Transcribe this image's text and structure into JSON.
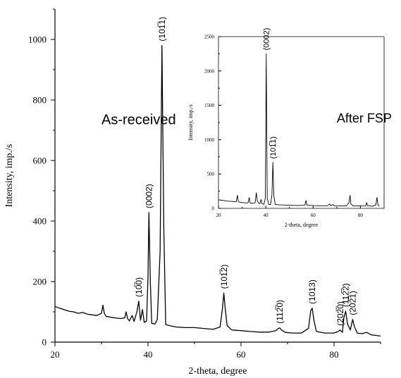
{
  "chart_data": [
    {
      "id": "main",
      "type": "line",
      "title": "",
      "xlabel": "2-theta, degree",
      "ylabel": "Intensity, imp./s",
      "xlim": [
        20,
        90
      ],
      "ylim": [
        0,
        1100
      ],
      "x_ticks": [
        20,
        40,
        60,
        80
      ],
      "y_ticks": [
        0,
        200,
        400,
        600,
        800,
        1000
      ],
      "grid": false,
      "legend": "none",
      "annotations": [
        {
          "text": "As-received",
          "x": 30,
          "y": 720
        }
      ],
      "peaks": [
        {
          "x": 38.0,
          "y": 135,
          "label": "(10̅0)"
        },
        {
          "x": 40.2,
          "y": 428,
          "label": "(0002)"
        },
        {
          "x": 43.0,
          "y": 980,
          "label": "(101̅1)"
        },
        {
          "x": 56.3,
          "y": 162,
          "label": "(101̅2)"
        },
        {
          "x": 68.3,
          "y": 47,
          "label": "(112̅0)"
        },
        {
          "x": 75.3,
          "y": 112,
          "label": "(1013)"
        },
        {
          "x": 81.3,
          "y": 40,
          "label": "(202̅0)"
        },
        {
          "x": 82.5,
          "y": 102,
          "label": "(112̅2)"
        },
        {
          "x": 84.0,
          "y": 75,
          "label": "(202̅1)"
        }
      ],
      "series": [
        {
          "points": [
            [
              20,
              118
            ],
            [
              21,
              112
            ],
            [
              22,
              107
            ],
            [
              23,
              102
            ],
            [
              24,
              100
            ],
            [
              25,
              95
            ],
            [
              26,
              98
            ],
            [
              27,
              92
            ],
            [
              28,
              90
            ],
            [
              29,
              88
            ],
            [
              29.6,
              92
            ],
            [
              30,
              95
            ],
            [
              30.3,
              122
            ],
            [
              30.6,
              95
            ],
            [
              31,
              85
            ],
            [
              32,
              82
            ],
            [
              33,
              80
            ],
            [
              34,
              78
            ],
            [
              35,
              80
            ],
            [
              35.3,
              100
            ],
            [
              35.6,
              78
            ],
            [
              36,
              70
            ],
            [
              36.6,
              88
            ],
            [
              37,
              68
            ],
            [
              37.6,
              100
            ],
            [
              38,
              135
            ],
            [
              38.4,
              72
            ],
            [
              38.8,
              108
            ],
            [
              39.2,
              65
            ],
            [
              39.7,
              70
            ],
            [
              40,
              215
            ],
            [
              40.2,
              428
            ],
            [
              40.5,
              200
            ],
            [
              40.8,
              62
            ],
            [
              41.5,
              60
            ],
            [
              42,
              75
            ],
            [
              42.6,
              300
            ],
            [
              43,
              980
            ],
            [
              43.4,
              380
            ],
            [
              43.8,
              58
            ],
            [
              44.5,
              55
            ],
            [
              46,
              50
            ],
            [
              48,
              48
            ],
            [
              50,
              48
            ],
            [
              52,
              45
            ],
            [
              54,
              42
            ],
            [
              55.5,
              50
            ],
            [
              56,
              110
            ],
            [
              56.3,
              162
            ],
            [
              56.6,
              110
            ],
            [
              57,
              55
            ],
            [
              58,
              40
            ],
            [
              60,
              38
            ],
            [
              62,
              35
            ],
            [
              64,
              33
            ],
            [
              66,
              33
            ],
            [
              67.5,
              38
            ],
            [
              68,
              45
            ],
            [
              68.3,
              47
            ],
            [
              68.7,
              40
            ],
            [
              69.5,
              32
            ],
            [
              71,
              30
            ],
            [
              73,
              30
            ],
            [
              74.5,
              45
            ],
            [
              75,
              105
            ],
            [
              75.3,
              112
            ],
            [
              75.7,
              70
            ],
            [
              76.2,
              35
            ],
            [
              78,
              30
            ],
            [
              80,
              30
            ],
            [
              81,
              36
            ],
            [
              81.3,
              40
            ],
            [
              81.8,
              32
            ],
            [
              82.1,
              80
            ],
            [
              82.5,
              102
            ],
            [
              82.9,
              60
            ],
            [
              83.5,
              40
            ],
            [
              84,
              75
            ],
            [
              84.4,
              50
            ],
            [
              85,
              30
            ],
            [
              86,
              28
            ],
            [
              87,
              32
            ],
            [
              88,
              24
            ],
            [
              89,
              22
            ],
            [
              90,
              20
            ]
          ]
        }
      ]
    },
    {
      "id": "inset",
      "type": "line",
      "title": "",
      "xlabel": "2-theta, degree",
      "ylabel": "Intensity, imp./s",
      "xlim": [
        20,
        90
      ],
      "ylim": [
        0,
        2500
      ],
      "x_ticks": [
        20,
        40,
        60,
        80
      ],
      "y_ticks": [
        0,
        500,
        1000,
        1500,
        2000,
        2500
      ],
      "grid": false,
      "legend": "none",
      "annotations": [
        {
          "text": "After FSP",
          "x": 70,
          "y": 1250
        }
      ],
      "peaks": [
        {
          "x": 40.2,
          "y": 2250,
          "label": "(0002)"
        },
        {
          "x": 43.0,
          "y": 670,
          "label": "(101̅1)"
        }
      ],
      "series": [
        {
          "points": [
            [
              20,
              125
            ],
            [
              22,
              115
            ],
            [
              24,
              105
            ],
            [
              26,
              100
            ],
            [
              27.5,
              95
            ],
            [
              28,
              190
            ],
            [
              28.4,
              95
            ],
            [
              29,
              90
            ],
            [
              30,
              85
            ],
            [
              31,
              80
            ],
            [
              32.5,
              80
            ],
            [
              33,
              160
            ],
            [
              33.4,
              78
            ],
            [
              34.5,
              75
            ],
            [
              35.5,
              80
            ],
            [
              36,
              225
            ],
            [
              36.4,
              110
            ],
            [
              37,
              75
            ],
            [
              37.5,
              70
            ],
            [
              38,
              130
            ],
            [
              38.4,
              65
            ],
            [
              39.2,
              60
            ],
            [
              39.8,
              150
            ],
            [
              40.2,
              2250
            ],
            [
              40.6,
              150
            ],
            [
              41.2,
              58
            ],
            [
              42,
              55
            ],
            [
              42.6,
              200
            ],
            [
              43,
              670
            ],
            [
              43.4,
              180
            ],
            [
              44,
              55
            ],
            [
              46,
              50
            ],
            [
              50,
              45
            ],
            [
              54,
              42
            ],
            [
              56.5,
              45
            ],
            [
              57,
              115
            ],
            [
              57.4,
              45
            ],
            [
              60,
              40
            ],
            [
              64,
              38
            ],
            [
              66,
              38
            ],
            [
              67,
              65
            ],
            [
              67.4,
              38
            ],
            [
              68.3,
              55
            ],
            [
              69,
              36
            ],
            [
              72,
              35
            ],
            [
              74,
              35
            ],
            [
              75.2,
              85
            ],
            [
              75.6,
              190
            ],
            [
              76,
              60
            ],
            [
              77,
              35
            ],
            [
              80,
              35
            ],
            [
              82.3,
              40
            ],
            [
              82.6,
              85
            ],
            [
              83,
              40
            ],
            [
              84,
              35
            ],
            [
              85,
              30
            ],
            [
              86.5,
              50
            ],
            [
              87,
              160
            ],
            [
              87.4,
              50
            ],
            [
              88,
              30
            ]
          ]
        }
      ]
    }
  ]
}
